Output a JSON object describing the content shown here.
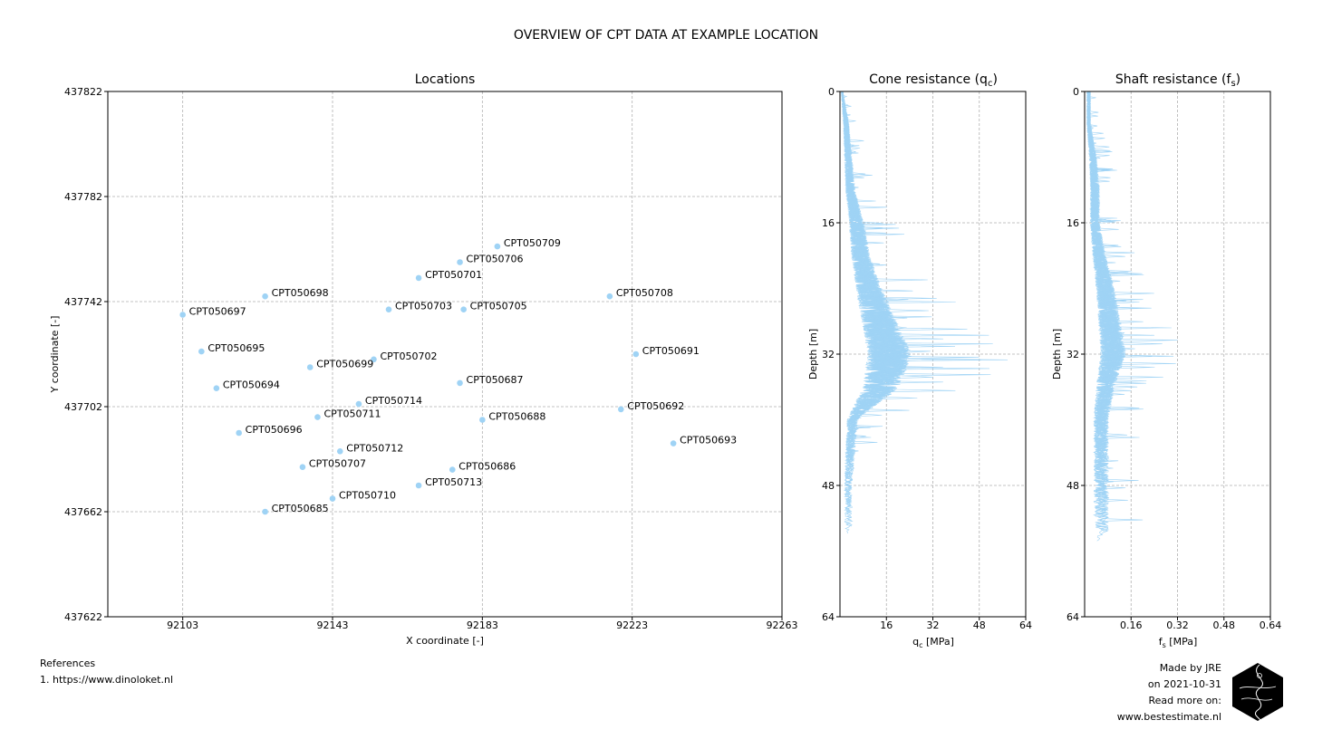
{
  "title": "OVERVIEW OF CPT DATA AT EXAMPLE  LOCATION",
  "references": {
    "heading": "References",
    "items": [
      "1. https://www.dinoloket.nl"
    ]
  },
  "credits": {
    "lines": [
      "Made by JRE",
      "on 2021-10-31",
      "Read more on:",
      "www.bestestimate.nl"
    ]
  },
  "colors": {
    "series": "#9fd3f5",
    "grid": "#b0b0b0"
  },
  "chart_data": [
    {
      "type": "scatter",
      "title": "Locations",
      "xlabel": "X coordinate [-]",
      "ylabel": "Y coordinate [-]",
      "xlim": [
        92083,
        92263
      ],
      "ylim": [
        437622,
        437822
      ],
      "xticks": [
        92103,
        92143,
        92183,
        92223,
        92263
      ],
      "yticks": [
        437622,
        437662,
        437702,
        437742,
        437782,
        437822
      ],
      "grid": true,
      "points": [
        {
          "label": "CPT050709",
          "x": 92187,
          "y": 437763
        },
        {
          "label": "CPT050706",
          "x": 92177,
          "y": 437757
        },
        {
          "label": "CPT050701",
          "x": 92166,
          "y": 437751
        },
        {
          "label": "CPT050698",
          "x": 92125,
          "y": 437744
        },
        {
          "label": "CPT050708",
          "x": 92217,
          "y": 437744
        },
        {
          "label": "CPT050697",
          "x": 92103,
          "y": 437737
        },
        {
          "label": "CPT050703",
          "x": 92158,
          "y": 437739
        },
        {
          "label": "CPT050705",
          "x": 92178,
          "y": 437739
        },
        {
          "label": "CPT050695",
          "x": 92108,
          "y": 437723
        },
        {
          "label": "CPT050702",
          "x": 92154,
          "y": 437720
        },
        {
          "label": "CPT050691",
          "x": 92224,
          "y": 437722
        },
        {
          "label": "CPT050699",
          "x": 92137,
          "y": 437717
        },
        {
          "label": "CPT050694",
          "x": 92112,
          "y": 437709
        },
        {
          "label": "CPT050687",
          "x": 92177,
          "y": 437711
        },
        {
          "label": "CPT050714",
          "x": 92150,
          "y": 437703
        },
        {
          "label": "CPT050711",
          "x": 92139,
          "y": 437698
        },
        {
          "label": "CPT050692",
          "x": 92220,
          "y": 437701
        },
        {
          "label": "CPT050688",
          "x": 92183,
          "y": 437697
        },
        {
          "label": "CPT050696",
          "x": 92118,
          "y": 437692
        },
        {
          "label": "CPT050693",
          "x": 92234,
          "y": 437688
        },
        {
          "label": "CPT050712",
          "x": 92145,
          "y": 437685
        },
        {
          "label": "CPT050707",
          "x": 92135,
          "y": 437679
        },
        {
          "label": "CPT050686",
          "x": 92175,
          "y": 437678
        },
        {
          "label": "CPT050713",
          "x": 92166,
          "y": 437672
        },
        {
          "label": "CPT050710",
          "x": 92143,
          "y": 437667
        },
        {
          "label": "CPT050685",
          "x": 92125,
          "y": 437662
        }
      ]
    },
    {
      "type": "line",
      "title": "Cone resistance (q",
      "title_sub": "c",
      "title_end": ")",
      "xlabel": "q",
      "xlabel_sub": "c",
      "xlabel_end": " [MPa]",
      "ylabel": "Depth [m]",
      "xlim": [
        0,
        64
      ],
      "ylim": [
        0,
        64
      ],
      "xticks": [
        16,
        32,
        48,
        64
      ],
      "yticks": [
        0,
        16,
        32,
        48,
        64
      ],
      "grid": true,
      "series_count": 26,
      "profile": [
        [
          0,
          1
        ],
        [
          4,
          3
        ],
        [
          8,
          4
        ],
        [
          12,
          5
        ],
        [
          16,
          8
        ],
        [
          20,
          10
        ],
        [
          24,
          14
        ],
        [
          28,
          19
        ],
        [
          32,
          24
        ],
        [
          36,
          20
        ],
        [
          40,
          6
        ],
        [
          44,
          5
        ],
        [
          48,
          4
        ],
        [
          52,
          4
        ],
        [
          55,
          5
        ]
      ]
    },
    {
      "type": "line",
      "title": "Shaft resistance (f",
      "title_sub": "s",
      "title_end": ")",
      "xlabel": "f",
      "xlabel_sub": "s",
      "xlabel_end": " [MPa]",
      "ylabel": "Depth [m]",
      "xlim": [
        0,
        0.64
      ],
      "ylim": [
        0,
        64
      ],
      "xticks": [
        0.16,
        0.32,
        0.48,
        0.64
      ],
      "yticks": [
        0,
        16,
        32,
        48,
        64
      ],
      "grid": true,
      "series_count": 26,
      "profile": [
        [
          0,
          0.02
        ],
        [
          4,
          0.02
        ],
        [
          8,
          0.04
        ],
        [
          12,
          0.05
        ],
        [
          16,
          0.05
        ],
        [
          20,
          0.07
        ],
        [
          24,
          0.1
        ],
        [
          28,
          0.12
        ],
        [
          32,
          0.14
        ],
        [
          36,
          0.1
        ],
        [
          40,
          0.08
        ],
        [
          44,
          0.08
        ],
        [
          48,
          0.08
        ],
        [
          52,
          0.08
        ],
        [
          55,
          0.08
        ]
      ]
    }
  ]
}
